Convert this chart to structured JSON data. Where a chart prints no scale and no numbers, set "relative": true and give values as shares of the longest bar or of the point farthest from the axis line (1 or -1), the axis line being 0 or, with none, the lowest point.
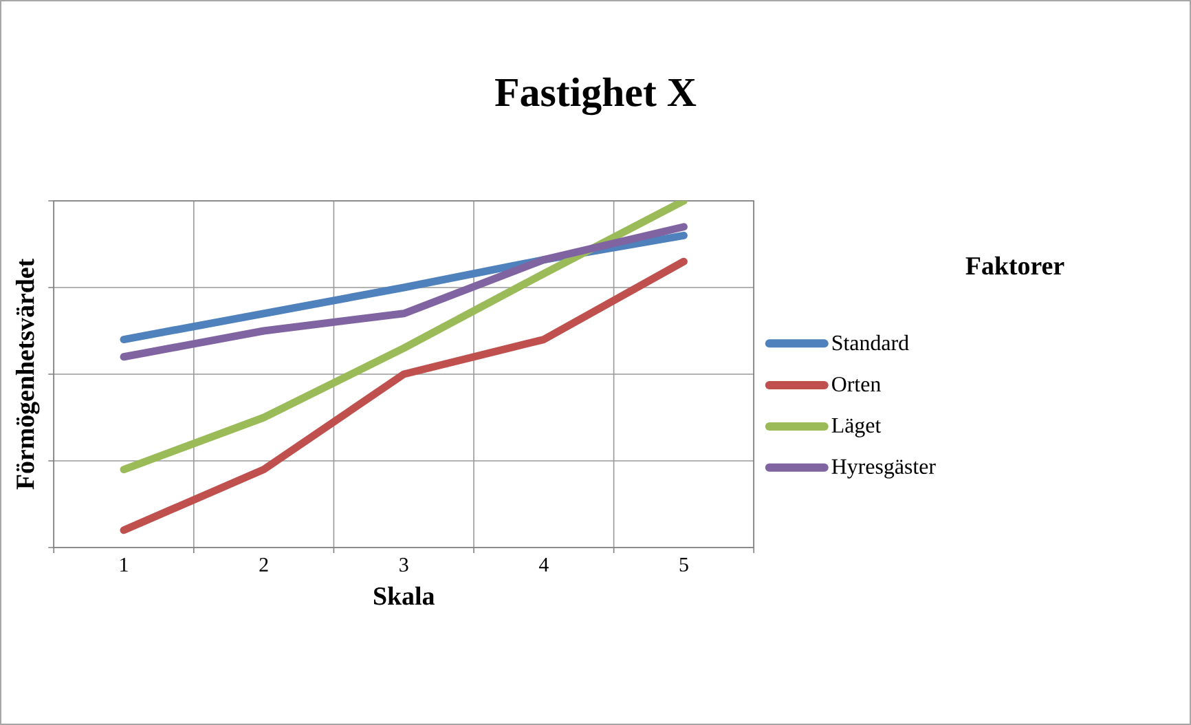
{
  "chart_data": {
    "type": "line",
    "title": "Fastighet X",
    "xlabel": "Skala",
    "ylabel": "Förmögenhetsvärdet",
    "legend_title": "Faktorer",
    "relative": true,
    "grid": true,
    "legend": "right",
    "marker": "none",
    "line_style": "solid",
    "categories": [
      "1",
      "2",
      "3",
      "4",
      "5"
    ],
    "series": [
      {
        "name": "Standard",
        "color": "#4f81bd",
        "values": [
          0.6,
          0.675,
          0.75,
          0.83,
          0.9
        ]
      },
      {
        "name": "Orten",
        "color": "#c0504d",
        "values": [
          0.05,
          0.225,
          0.5,
          0.6,
          0.825
        ]
      },
      {
        "name": "Läget",
        "color": "#9bbb59",
        "values": [
          0.225,
          0.375,
          0.575,
          0.79,
          1.0
        ]
      },
      {
        "name": "Hyresgäster",
        "color": "#8064a2",
        "values": [
          0.55,
          0.625,
          0.675,
          0.83,
          0.925
        ]
      }
    ]
  }
}
